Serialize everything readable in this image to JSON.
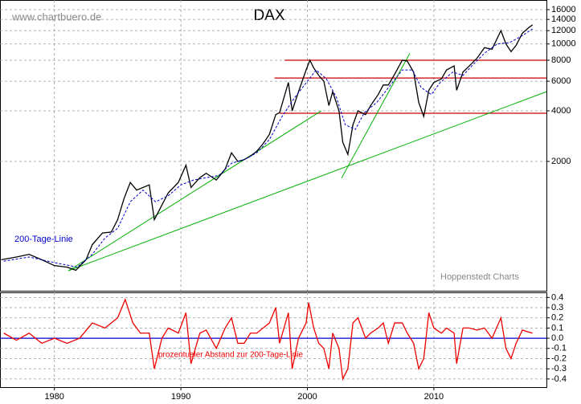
{
  "chart_data": [
    {
      "type": "line",
      "title": "DAX",
      "watermark": "www.chartbuero.de",
      "source": "Hoppenstedt Charts",
      "log_y": true,
      "grid": true,
      "xlim": [
        1975.7,
        2018.9
      ],
      "ylim": [
        340,
        18260
      ],
      "yticks": [
        2000,
        4000,
        6000,
        8000,
        10000,
        12000,
        14000,
        16000
      ],
      "series": [
        {
          "color": "#000000",
          "x": [
            1975.8,
            1977,
            1978,
            1979,
            1980,
            1981,
            1981.7,
            1982.5,
            1983,
            1983.8,
            1984.5,
            1985,
            1985.5,
            1986,
            1986.5,
            1987.5,
            1987.9,
            1988.5,
            1989,
            1989.8,
            1990.4,
            1990.8,
            1991.5,
            1992,
            1992.8,
            1993.5,
            1994,
            1994.5,
            1995,
            1995.5,
            1996,
            1996.5,
            1997,
            1997.5,
            1997.8,
            1998.5,
            1998.8,
            1999.3,
            1999.9,
            2000.2,
            2000.5,
            2000.9,
            2001.3,
            2001.7,
            2002,
            2002.5,
            2002.8,
            2003.2,
            2003.6,
            2004,
            2004.6,
            2005,
            2005.6,
            2006,
            2006.4,
            2006.9,
            2007.5,
            2007.9,
            2008.4,
            2008.8,
            2009.2,
            2009.6,
            2010,
            2010.6,
            2011,
            2011.6,
            2011.8,
            2012.3,
            2012.8,
            2013.4,
            2014,
            2014.6,
            2015.3,
            2015.7,
            2016.1,
            2016.5,
            2017,
            2017.5,
            2017.8
          ],
          "values": [
            520,
            540,
            560,
            520,
            480,
            470,
            450,
            520,
            640,
            750,
            760,
            900,
            1200,
            1500,
            1350,
            1450,
            900,
            1100,
            1300,
            1500,
            1900,
            1400,
            1600,
            1700,
            1550,
            1800,
            2250,
            2000,
            2050,
            2150,
            2300,
            2550,
            2900,
            3800,
            3900,
            5900,
            4000,
            5200,
            7000,
            8000,
            7200,
            6500,
            6000,
            4300,
            5200,
            4000,
            2600,
            2200,
            3300,
            4000,
            3800,
            4300,
            5000,
            5700,
            5700,
            6600,
            8000,
            7900,
            6800,
            4500,
            3700,
            5300,
            5900,
            6200,
            7000,
            7400,
            5300,
            6800,
            7400,
            8200,
            9500,
            9300,
            12000,
            10000,
            9000,
            9800,
            11600,
            12500,
            13000
          ]
        },
        {
          "name": "200-Tage-Linie",
          "color": "#0000cc",
          "x": [
            1976,
            1978,
            1980,
            1981.8,
            1983,
            1984,
            1985,
            1986,
            1987,
            1988,
            1989,
            1990,
            1991,
            1992,
            1993,
            1994,
            1995,
            1996,
            1997,
            1998,
            1999,
            2000,
            2000.7,
            2001.5,
            2002.3,
            2003,
            2003.8,
            2004.5,
            2005.5,
            2006.5,
            2007.5,
            2008.3,
            2009,
            2009.8,
            2010.5,
            2011.5,
            2012.3,
            2013,
            2014,
            2015,
            2016,
            2017,
            2017.8
          ],
          "values": [
            510,
            540,
            500,
            470,
            560,
            700,
            800,
            1150,
            1350,
            1150,
            1250,
            1450,
            1550,
            1600,
            1650,
            1950,
            2050,
            2250,
            2700,
            3700,
            4800,
            6000,
            7000,
            6200,
            4800,
            3300,
            3100,
            3900,
            4500,
            5600,
            7000,
            7000,
            5500,
            5000,
            5900,
            6800,
            6500,
            7400,
            8800,
            10000,
            10200,
            11200,
            12300
          ]
        }
      ],
      "trendline_color": "#00b000",
      "trendlines": [
        {
          "x": [
            1981.1,
            2001.1
          ],
          "y": [
            447,
            4000
          ]
        },
        {
          "x": [
            1981.1,
            2018.9
          ],
          "y": [
            447,
            5200
          ]
        },
        {
          "x": [
            2002.7,
            2008.1
          ],
          "y": [
            1590,
            8800
          ]
        }
      ],
      "level_color": "#cc0000",
      "levels": [
        {
          "from": 1998.2,
          "value": 8000
        },
        {
          "from": 1997.4,
          "value": 6270
        },
        {
          "from": 1997.8,
          "value": 3870
        }
      ]
    },
    {
      "type": "line",
      "grid": true,
      "xlim": [
        1975.7,
        2018.9
      ],
      "ylim": [
        -0.48,
        0.45
      ],
      "xticks": [
        1980,
        1990,
        2000,
        2010
      ],
      "yticks": [
        0.4,
        0.3,
        0.2,
        0.1,
        {
          "value": 0,
          "label": "0.0"
        },
        -0.1,
        -0.2,
        -0.3,
        -0.4
      ],
      "baseline_color": "#0000cc",
      "series": [
        {
          "name": "prozentualer Abstand zur 200-Tage-Linie",
          "color": "#ee0000",
          "x": [
            1976,
            1977,
            1978,
            1979,
            1980,
            1981,
            1982,
            1983,
            1984,
            1985,
            1985.6,
            1986.2,
            1986.8,
            1987.5,
            1987.9,
            1988.5,
            1989,
            1989.8,
            1990.4,
            1990.8,
            1991.5,
            1992,
            1992.8,
            1993.5,
            1994,
            1994.5,
            1995,
            1995.5,
            1996,
            1996.5,
            1997,
            1997.5,
            1997.8,
            1998.5,
            1998.8,
            1999.3,
            1999.9,
            2000.1,
            2000.5,
            2000.9,
            2001.3,
            2001.7,
            2002,
            2002.5,
            2002.8,
            2003.2,
            2003.6,
            2004,
            2004.6,
            2005,
            2005.6,
            2006,
            2006.4,
            2006.9,
            2007.5,
            2007.9,
            2008.4,
            2008.8,
            2009.2,
            2009.6,
            2010,
            2010.6,
            2011,
            2011.6,
            2011.8,
            2012.3,
            2012.8,
            2013.4,
            2014,
            2014.6,
            2015.3,
            2015.7,
            2016.1,
            2016.5,
            2017,
            2017.5,
            2017.8
          ],
          "values": [
            0.05,
            -0.02,
            0.05,
            -0.05,
            0.0,
            -0.05,
            0.0,
            0.15,
            0.1,
            0.2,
            0.38,
            0.15,
            0.05,
            0.05,
            -0.3,
            0.0,
            0.1,
            0.05,
            0.25,
            -0.25,
            0.05,
            0.08,
            -0.1,
            0.1,
            0.2,
            -0.05,
            -0.05,
            0.05,
            0.05,
            0.1,
            0.15,
            0.3,
            -0.05,
            0.25,
            -0.3,
            0.0,
            0.15,
            0.35,
            0.1,
            -0.05,
            -0.1,
            -0.3,
            0.05,
            -0.1,
            -0.4,
            -0.3,
            0.15,
            0.2,
            0.0,
            0.05,
            0.1,
            0.15,
            -0.05,
            0.15,
            0.15,
            0.05,
            -0.05,
            -0.3,
            -0.2,
            0.25,
            0.1,
            0.05,
            0.1,
            0.05,
            -0.25,
            0.1,
            0.1,
            0.08,
            0.1,
            0.0,
            0.2,
            -0.1,
            -0.2,
            -0.05,
            0.08,
            0.06,
            0.05
          ]
        }
      ]
    }
  ]
}
